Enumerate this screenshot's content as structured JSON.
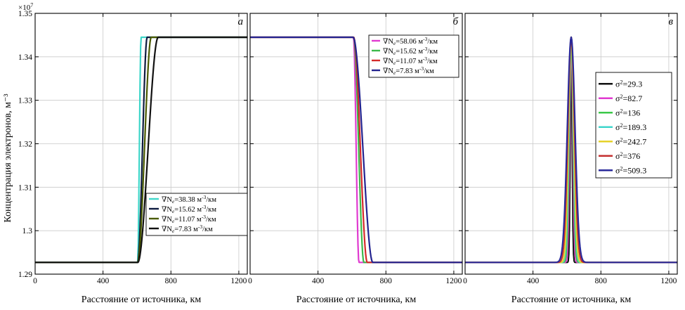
{
  "figure": {
    "y_axis_label": "Концентрация электронов, м⁻³",
    "y_multiplier": "×10",
    "y_multiplier_exp": "7"
  },
  "chart_data": [
    {
      "type": "line",
      "panel_label": "а",
      "xlabel": "Расстояние от источника, км",
      "ylabel": "Концентрация электронов, м⁻³",
      "xlim": [
        0,
        1250
      ],
      "ylim": [
        1.29,
        1.35
      ],
      "xticks": [
        0,
        400,
        800,
        1200
      ],
      "xtick_labels": [
        "0",
        "400",
        "800",
        "1200"
      ],
      "yticks": [
        1.29,
        1.3,
        1.31,
        1.32,
        1.33,
        1.34,
        1.35
      ],
      "ytick_labels": [
        "1.29",
        "1.3",
        "1.31",
        "1.32",
        "1.33",
        "1.34",
        "1.35"
      ],
      "grid": true,
      "legend_position": "bottom-right",
      "curve_kind": "rise",
      "low": 1.2927,
      "high": 1.3445,
      "series": [
        {
          "name_prefix": "∇N",
          "name_sub": "e",
          "name_value": "=38.38 м",
          "name_exp": "-3",
          "name_suffix": "/км",
          "color": "#3ed6c9",
          "center": 614,
          "half_width": 10
        },
        {
          "name_prefix": "∇N",
          "name_sub": "e",
          "name_value": "=15.62 м",
          "name_exp": "-3",
          "name_suffix": "/км",
          "color": "#0d1b40",
          "center": 632,
          "half_width": 28
        },
        {
          "name_prefix": "∇N",
          "name_sub": "e",
          "name_value": "=11.07 м",
          "name_exp": "-3",
          "name_suffix": "/км",
          "color": "#4a5a00",
          "center": 644,
          "half_width": 40
        },
        {
          "name_prefix": "∇N",
          "name_sub": "e",
          "name_value": "=7.83 м",
          "name_exp": "-3",
          "name_suffix": "/км",
          "color": "#111111",
          "center": 665,
          "half_width": 60
        }
      ]
    },
    {
      "type": "line",
      "panel_label": "б",
      "xlabel": "Расстояние от источника, км",
      "ylabel": "Концентрация электронов, м⁻³",
      "xlim": [
        0,
        1250
      ],
      "ylim": [
        1.29,
        1.35
      ],
      "xticks": [
        0,
        400,
        800,
        1200
      ],
      "xtick_labels": [
        "0",
        "400",
        "800",
        "1200"
      ],
      "grid": true,
      "legend_position": "top-right",
      "curve_kind": "fall",
      "low": 1.2927,
      "high": 1.3445,
      "series": [
        {
          "name_prefix": "∇N",
          "name_sub": "e",
          "name_value": "=58.06 м",
          "name_exp": "-3",
          "name_suffix": "/км",
          "color": "#e03ad0",
          "center": 625,
          "half_width": 16
        },
        {
          "name_prefix": "∇N",
          "name_sub": "e",
          "name_value": "=15.62 м",
          "name_exp": "-3",
          "name_suffix": "/км",
          "color": "#3cb84a",
          "center": 640,
          "half_width": 30
        },
        {
          "name_prefix": "∇N",
          "name_sub": "e",
          "name_value": "=11.07 м",
          "name_exp": "-3",
          "name_suffix": "/км",
          "color": "#d42a2a",
          "center": 650,
          "half_width": 40
        },
        {
          "name_prefix": "∇N",
          "name_sub": "e",
          "name_value": "=7.83 м",
          "name_exp": "-3",
          "name_suffix": "/км",
          "color": "#23238f",
          "center": 665,
          "half_width": 58
        }
      ]
    },
    {
      "type": "line",
      "panel_label": "в",
      "xlabel": "Расстояние от источника, км",
      "ylabel": "Концентрация электронов, м⁻³",
      "xlim": [
        0,
        1250
      ],
      "ylim": [
        1.29,
        1.35
      ],
      "xticks": [
        0,
        400,
        800,
        1200
      ],
      "xtick_labels": [
        "0",
        "400",
        "800",
        "1200"
      ],
      "grid": true,
      "legend_position": "right",
      "curve_kind": "peak",
      "low": 1.2927,
      "high": 1.3445,
      "peak_center": 625,
      "series": [
        {
          "name_prefix": "σ",
          "name_exp": "2",
          "name_value": "=29.3",
          "color": "#111111",
          "variance": 29.3
        },
        {
          "name_prefix": "σ",
          "name_exp": "2",
          "name_value": "=82.7",
          "color": "#e03ad0",
          "variance": 82.7
        },
        {
          "name_prefix": "σ",
          "name_exp": "2",
          "name_value": "=136",
          "color": "#3cc84a",
          "variance": 136
        },
        {
          "name_prefix": "σ",
          "name_exp": "2",
          "name_value": "=189.3",
          "color": "#3fd6cc",
          "variance": 189.3
        },
        {
          "name_prefix": "σ",
          "name_exp": "2",
          "name_value": "=242.7",
          "color": "#e6d22a",
          "variance": 242.7
        },
        {
          "name_prefix": "σ",
          "name_exp": "2",
          "name_value": "=376",
          "color": "#c43030",
          "variance": 376
        },
        {
          "name_prefix": "σ",
          "name_exp": "2",
          "name_value": "=509.3",
          "color": "#2a2a9a",
          "variance": 509.3
        }
      ]
    }
  ]
}
